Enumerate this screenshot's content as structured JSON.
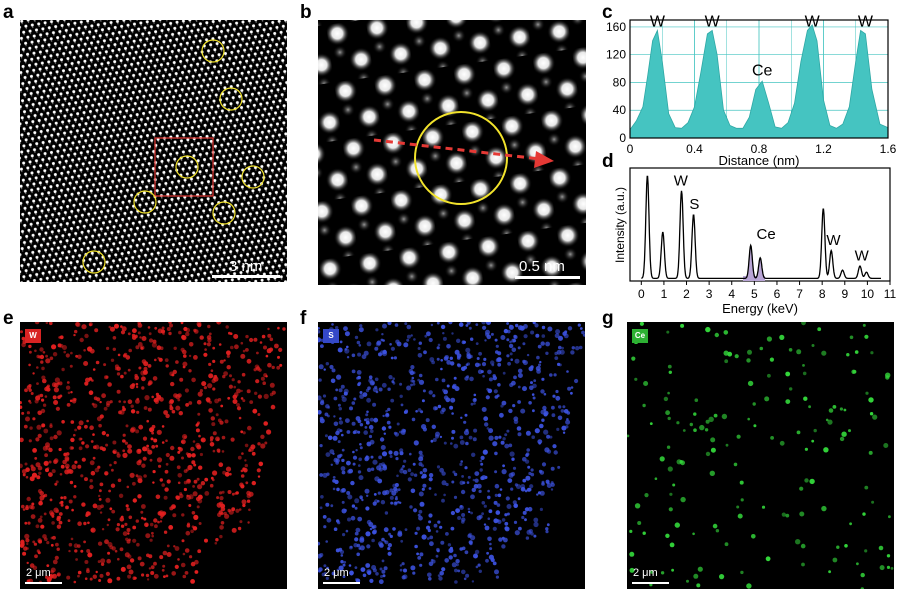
{
  "panels": {
    "a": {
      "letter": "a",
      "scale_label": "3 nm"
    },
    "b": {
      "letter": "b",
      "scale_label": "0.5 nm"
    },
    "c": {
      "letter": "c"
    },
    "d": {
      "letter": "d"
    },
    "e": {
      "letter": "e",
      "element": "W",
      "scale_label": "2 μm",
      "color": "#e32020"
    },
    "f": {
      "letter": "f",
      "element": "S",
      "scale_label": "2 μm",
      "color": "#3c52e0"
    },
    "g": {
      "letter": "g",
      "element": "Ce",
      "scale_label": "2 μm",
      "color": "#33d63a"
    }
  },
  "chart_data": [
    {
      "type": "area",
      "panel": "c",
      "xlabel": "Distance (nm)",
      "ylabel": "",
      "xlim": [
        0,
        1.6
      ],
      "ylim": [
        0,
        170
      ],
      "xticks": [
        "0",
        "0.4",
        "0.8",
        "1.2",
        "1.6"
      ],
      "yticks": [
        "0",
        "40",
        "80",
        "120",
        "160"
      ],
      "grid": true,
      "fill_color": "#45c4c1",
      "annotations": [
        "W",
        "W",
        "Ce",
        "W",
        "W"
      ],
      "x": [
        0,
        0.04,
        0.08,
        0.11,
        0.14,
        0.17,
        0.2,
        0.24,
        0.28,
        0.32,
        0.36,
        0.4,
        0.44,
        0.48,
        0.51,
        0.54,
        0.58,
        0.62,
        0.66,
        0.7,
        0.74,
        0.78,
        0.82,
        0.86,
        0.9,
        0.94,
        0.98,
        1.02,
        1.06,
        1.1,
        1.13,
        1.16,
        1.2,
        1.24,
        1.28,
        1.32,
        1.36,
        1.4,
        1.43,
        1.46,
        1.5,
        1.55,
        1.6
      ],
      "values": [
        12,
        25,
        45,
        90,
        140,
        155,
        110,
        35,
        15,
        14,
        22,
        45,
        95,
        150,
        155,
        120,
        40,
        18,
        14,
        14,
        30,
        70,
        82,
        50,
        16,
        14,
        22,
        50,
        110,
        155,
        163,
        140,
        55,
        18,
        14,
        20,
        45,
        110,
        155,
        150,
        70,
        20,
        15
      ]
    },
    {
      "type": "line",
      "panel": "d",
      "xlabel": "Energy (keV)",
      "ylabel": "Intensity (a.u.)",
      "xlim": [
        -0.5,
        11
      ],
      "xticks": [
        "0",
        "1",
        "2",
        "3",
        "4",
        "5",
        "6",
        "7",
        "8",
        "9",
        "10",
        "11"
      ],
      "annotations": [
        "W",
        "S",
        "Ce",
        "W",
        "W"
      ],
      "peaks": [
        {
          "x": 0.27,
          "y": 100
        },
        {
          "x": 0.95,
          "y": 45
        },
        {
          "x": 1.78,
          "y": 85
        },
        {
          "x": 2.31,
          "y": 62
        },
        {
          "x": 4.84,
          "y": 32
        },
        {
          "x": 5.26,
          "y": 20
        },
        {
          "x": 8.05,
          "y": 68
        },
        {
          "x": 8.4,
          "y": 27
        },
        {
          "x": 8.9,
          "y": 8
        },
        {
          "x": 9.67,
          "y": 12
        },
        {
          "x": 9.96,
          "y": 6
        }
      ]
    }
  ]
}
